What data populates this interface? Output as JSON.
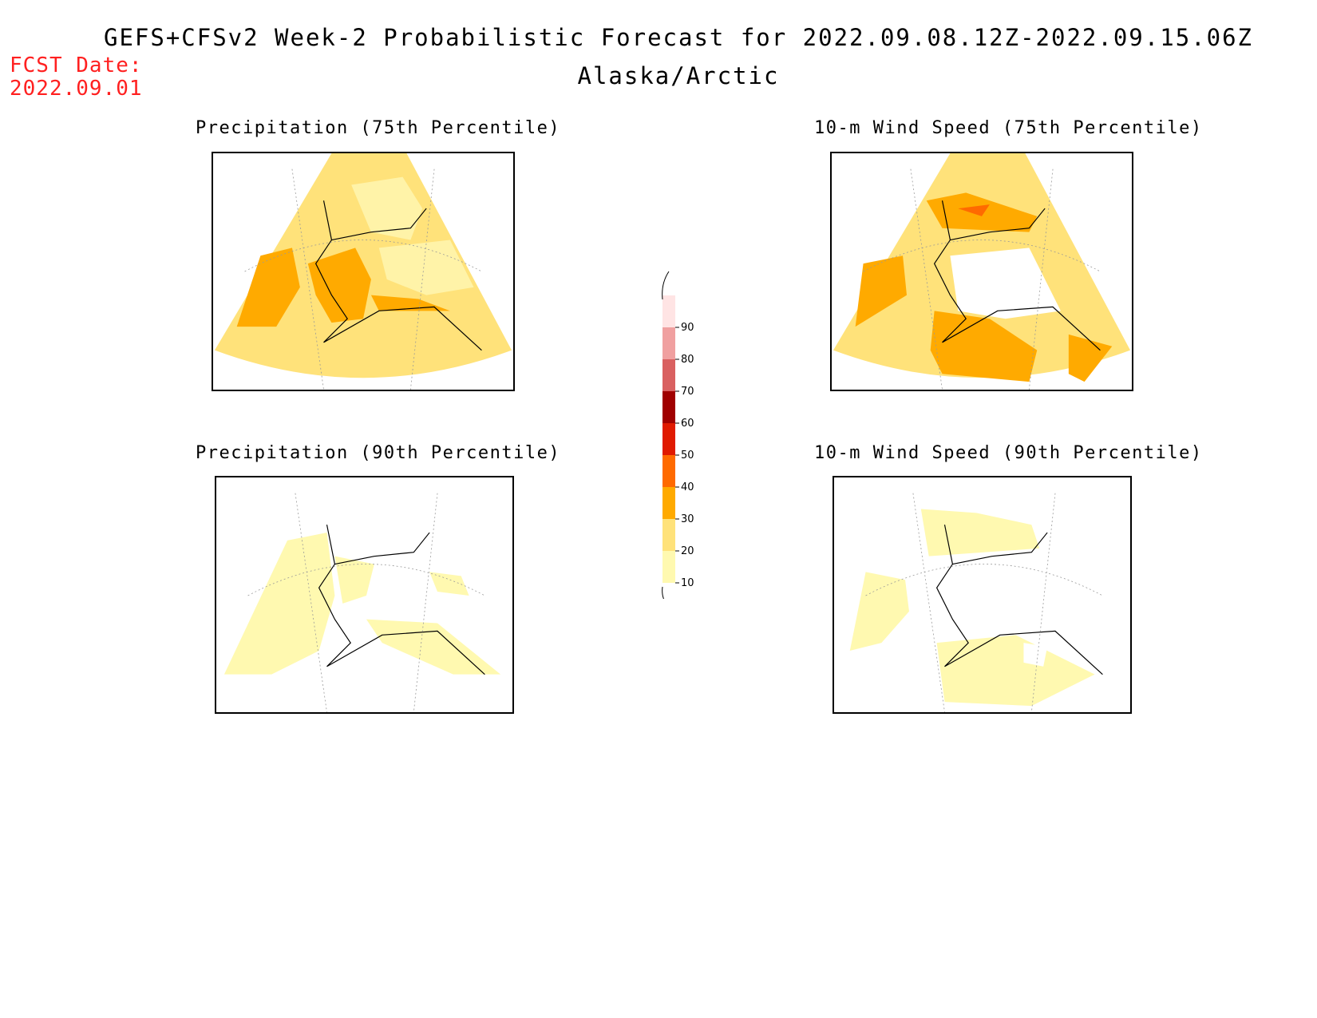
{
  "header": {
    "title": "GEFS+CFSv2 Week-2 Probabilistic Forecast for 2022.09.08.12Z-2022.09.15.06Z",
    "subtitle": "Alaska/Arctic",
    "fcst_label": "FCST Date:",
    "fcst_date": "2022.09.01"
  },
  "panels": [
    {
      "title": "Precipitation (75th Percentile)"
    },
    {
      "title": "10-m Wind Speed (75th Percentile)"
    },
    {
      "title": "Precipitation (90th Percentile)"
    },
    {
      "title": "10-m Wind Speed (90th Percentile)"
    }
  ],
  "colorbar": {
    "levels": [
      "10",
      "20",
      "30",
      "40",
      "50",
      "60",
      "70",
      "80",
      "90"
    ],
    "colors": [
      "#fff9b0",
      "#ffe27a",
      "#ffaa00",
      "#ff6a00",
      "#e01a00",
      "#a00000",
      "#d96060",
      "#f0a0a0",
      "#ffe4e4"
    ]
  }
}
